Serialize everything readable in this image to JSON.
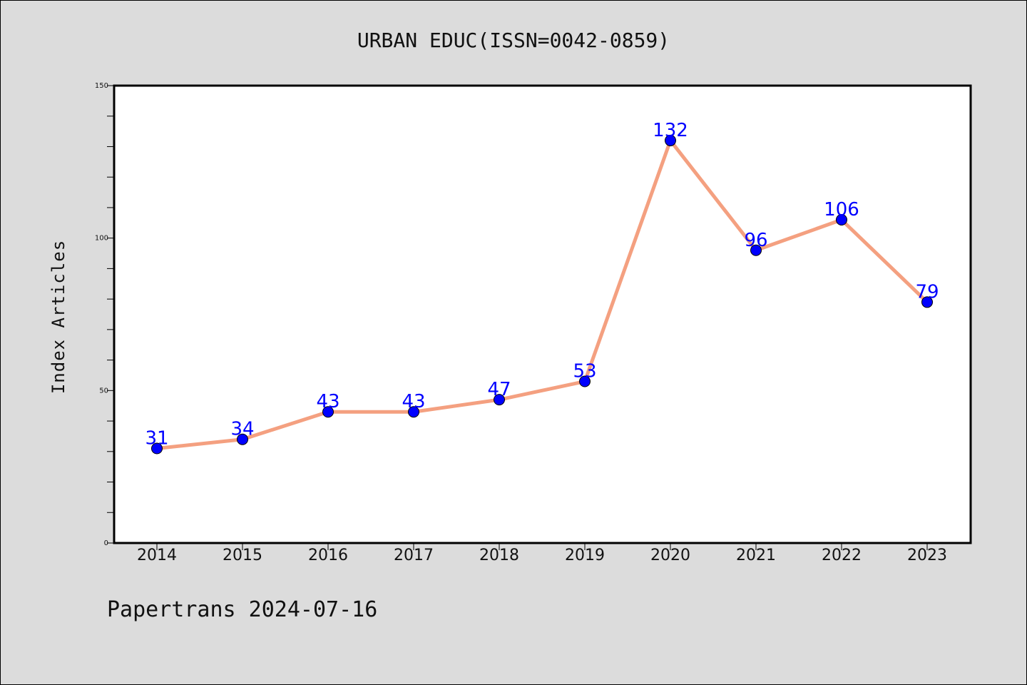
{
  "chart_data": {
    "type": "line",
    "title": "URBAN EDUC(ISSN=0042-0859)",
    "xlabel": "",
    "ylabel": "Index Articles",
    "categories": [
      "2014",
      "2015",
      "2016",
      "2017",
      "2018",
      "2019",
      "2020",
      "2021",
      "2022",
      "2023"
    ],
    "series": [
      {
        "values": [
          31,
          34,
          43,
          43,
          47,
          53,
          132,
          96,
          106,
          79
        ]
      }
    ],
    "ylim": [
      0,
      150
    ],
    "yticks": [
      0,
      50,
      100,
      150
    ],
    "grid": false,
    "data_labels": true,
    "line_color": "#f4a080",
    "marker_color": "#0000ff",
    "label_color": "#0000ff"
  },
  "footer": {
    "text": "Papertrans 2024-07-16"
  }
}
